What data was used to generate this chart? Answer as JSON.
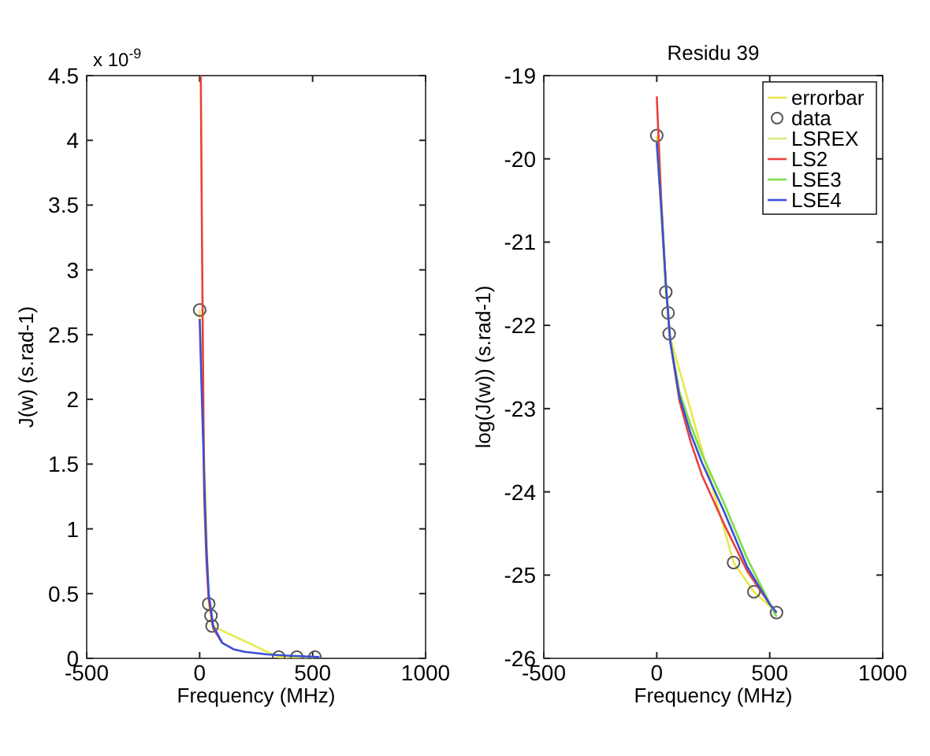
{
  "chart_data": [
    {
      "type": "line",
      "xlabel": "Frequency (MHz)",
      "ylabel": "J(w) (s.rad-1)",
      "annotations": [
        "x 10$^{-9}$"
      ],
      "xlim": [
        -500,
        1000
      ],
      "ylim": [
        0,
        4.5
      ],
      "xticks": [
        -500,
        0,
        500,
        1000
      ],
      "yticks": [
        0,
        0.5,
        1,
        1.5,
        2,
        2.5,
        3,
        3.5,
        4,
        4.5
      ],
      "grid": false,
      "legend": false,
      "series": [
        {
          "color": "#e8e84a",
          "x": [
            0,
            40,
            50,
            55,
            350,
            430,
            510
          ],
          "values": [
            2.69,
            0.42,
            0.33,
            0.25,
            0.01,
            0.01,
            0.01
          ]
        },
        {
          "type": "scatter",
          "marker": "circle",
          "color": "#555555",
          "x": [
            0,
            40,
            50,
            55,
            350,
            430,
            510
          ],
          "values": [
            2.69,
            0.42,
            0.33,
            0.25,
            0.01,
            0.01,
            0.01
          ]
        },
        {
          "color": "#e8413a",
          "x": [
            5,
            10,
            20,
            30,
            40,
            60,
            100
          ],
          "values": [
            4.5,
            3.3,
            1.25,
            0.75,
            0.46,
            0.23,
            0.12
          ]
        },
        {
          "color": "#3a4fd8",
          "x": [
            0,
            10,
            20,
            30,
            40,
            60,
            100,
            150,
            200,
            300,
            400,
            530
          ],
          "values": [
            2.62,
            2.0,
            1.4,
            0.85,
            0.5,
            0.25,
            0.12,
            0.07,
            0.05,
            0.03,
            0.02,
            0.01
          ]
        }
      ]
    },
    {
      "type": "line",
      "title": "Residu 39",
      "xlabel": "Frequency (MHz)",
      "ylabel": "log(J(w)) (s.rad-1)",
      "xlim": [
        -500,
        1000
      ],
      "ylim": [
        -26,
        -19
      ],
      "xticks": [
        -500,
        0,
        500,
        1000
      ],
      "yticks": [
        -26,
        -25,
        -24,
        -23,
        -22,
        -21,
        -20,
        -19
      ],
      "grid": false,
      "legend": "top right",
      "series": [
        {
          "name": "errorbar",
          "color": "#e8e84a",
          "x": [
            0,
            40,
            50,
            55,
            340,
            430,
            530
          ],
          "values": [
            -19.72,
            -21.6,
            -21.85,
            -22.1,
            -24.85,
            -25.2,
            -25.45
          ]
        },
        {
          "type": "scatter",
          "name": "data",
          "marker": "circle",
          "color": "#555555",
          "x": [
            0,
            40,
            50,
            55,
            340,
            430,
            530
          ],
          "values": [
            -19.72,
            -21.6,
            -21.85,
            -22.1,
            -24.85,
            -25.2,
            -25.45
          ]
        },
        {
          "name": "LSREX",
          "color": "#d8f07a",
          "x": [
            0,
            20,
            40,
            60,
            100,
            150,
            200,
            300,
            400,
            530
          ],
          "values": [
            -19.8,
            -20.6,
            -21.5,
            -22.2,
            -22.8,
            -23.2,
            -23.55,
            -24.15,
            -24.8,
            -25.5
          ]
        },
        {
          "name": "LS2",
          "color": "#e8413a",
          "x": [
            0,
            20,
            40,
            60,
            100,
            150,
            200,
            300,
            400,
            500,
            530
          ],
          "values": [
            -19.25,
            -20.5,
            -21.5,
            -22.2,
            -22.9,
            -23.4,
            -23.8,
            -24.4,
            -24.95,
            -25.35,
            -25.45
          ]
        },
        {
          "name": "LSE3",
          "color": "#7ee04a",
          "x": [
            0,
            20,
            40,
            60,
            100,
            150,
            200,
            300,
            400,
            530
          ],
          "values": [
            -19.8,
            -20.6,
            -21.5,
            -22.2,
            -22.8,
            -23.2,
            -23.55,
            -24.15,
            -24.8,
            -25.5
          ]
        },
        {
          "name": "LSE4",
          "color": "#3a4fd8",
          "x": [
            0,
            20,
            40,
            60,
            100,
            150,
            200,
            300,
            400,
            500,
            530
          ],
          "values": [
            -19.8,
            -20.6,
            -21.5,
            -22.2,
            -22.85,
            -23.3,
            -23.65,
            -24.25,
            -24.9,
            -25.35,
            -25.45
          ]
        }
      ]
    }
  ]
}
